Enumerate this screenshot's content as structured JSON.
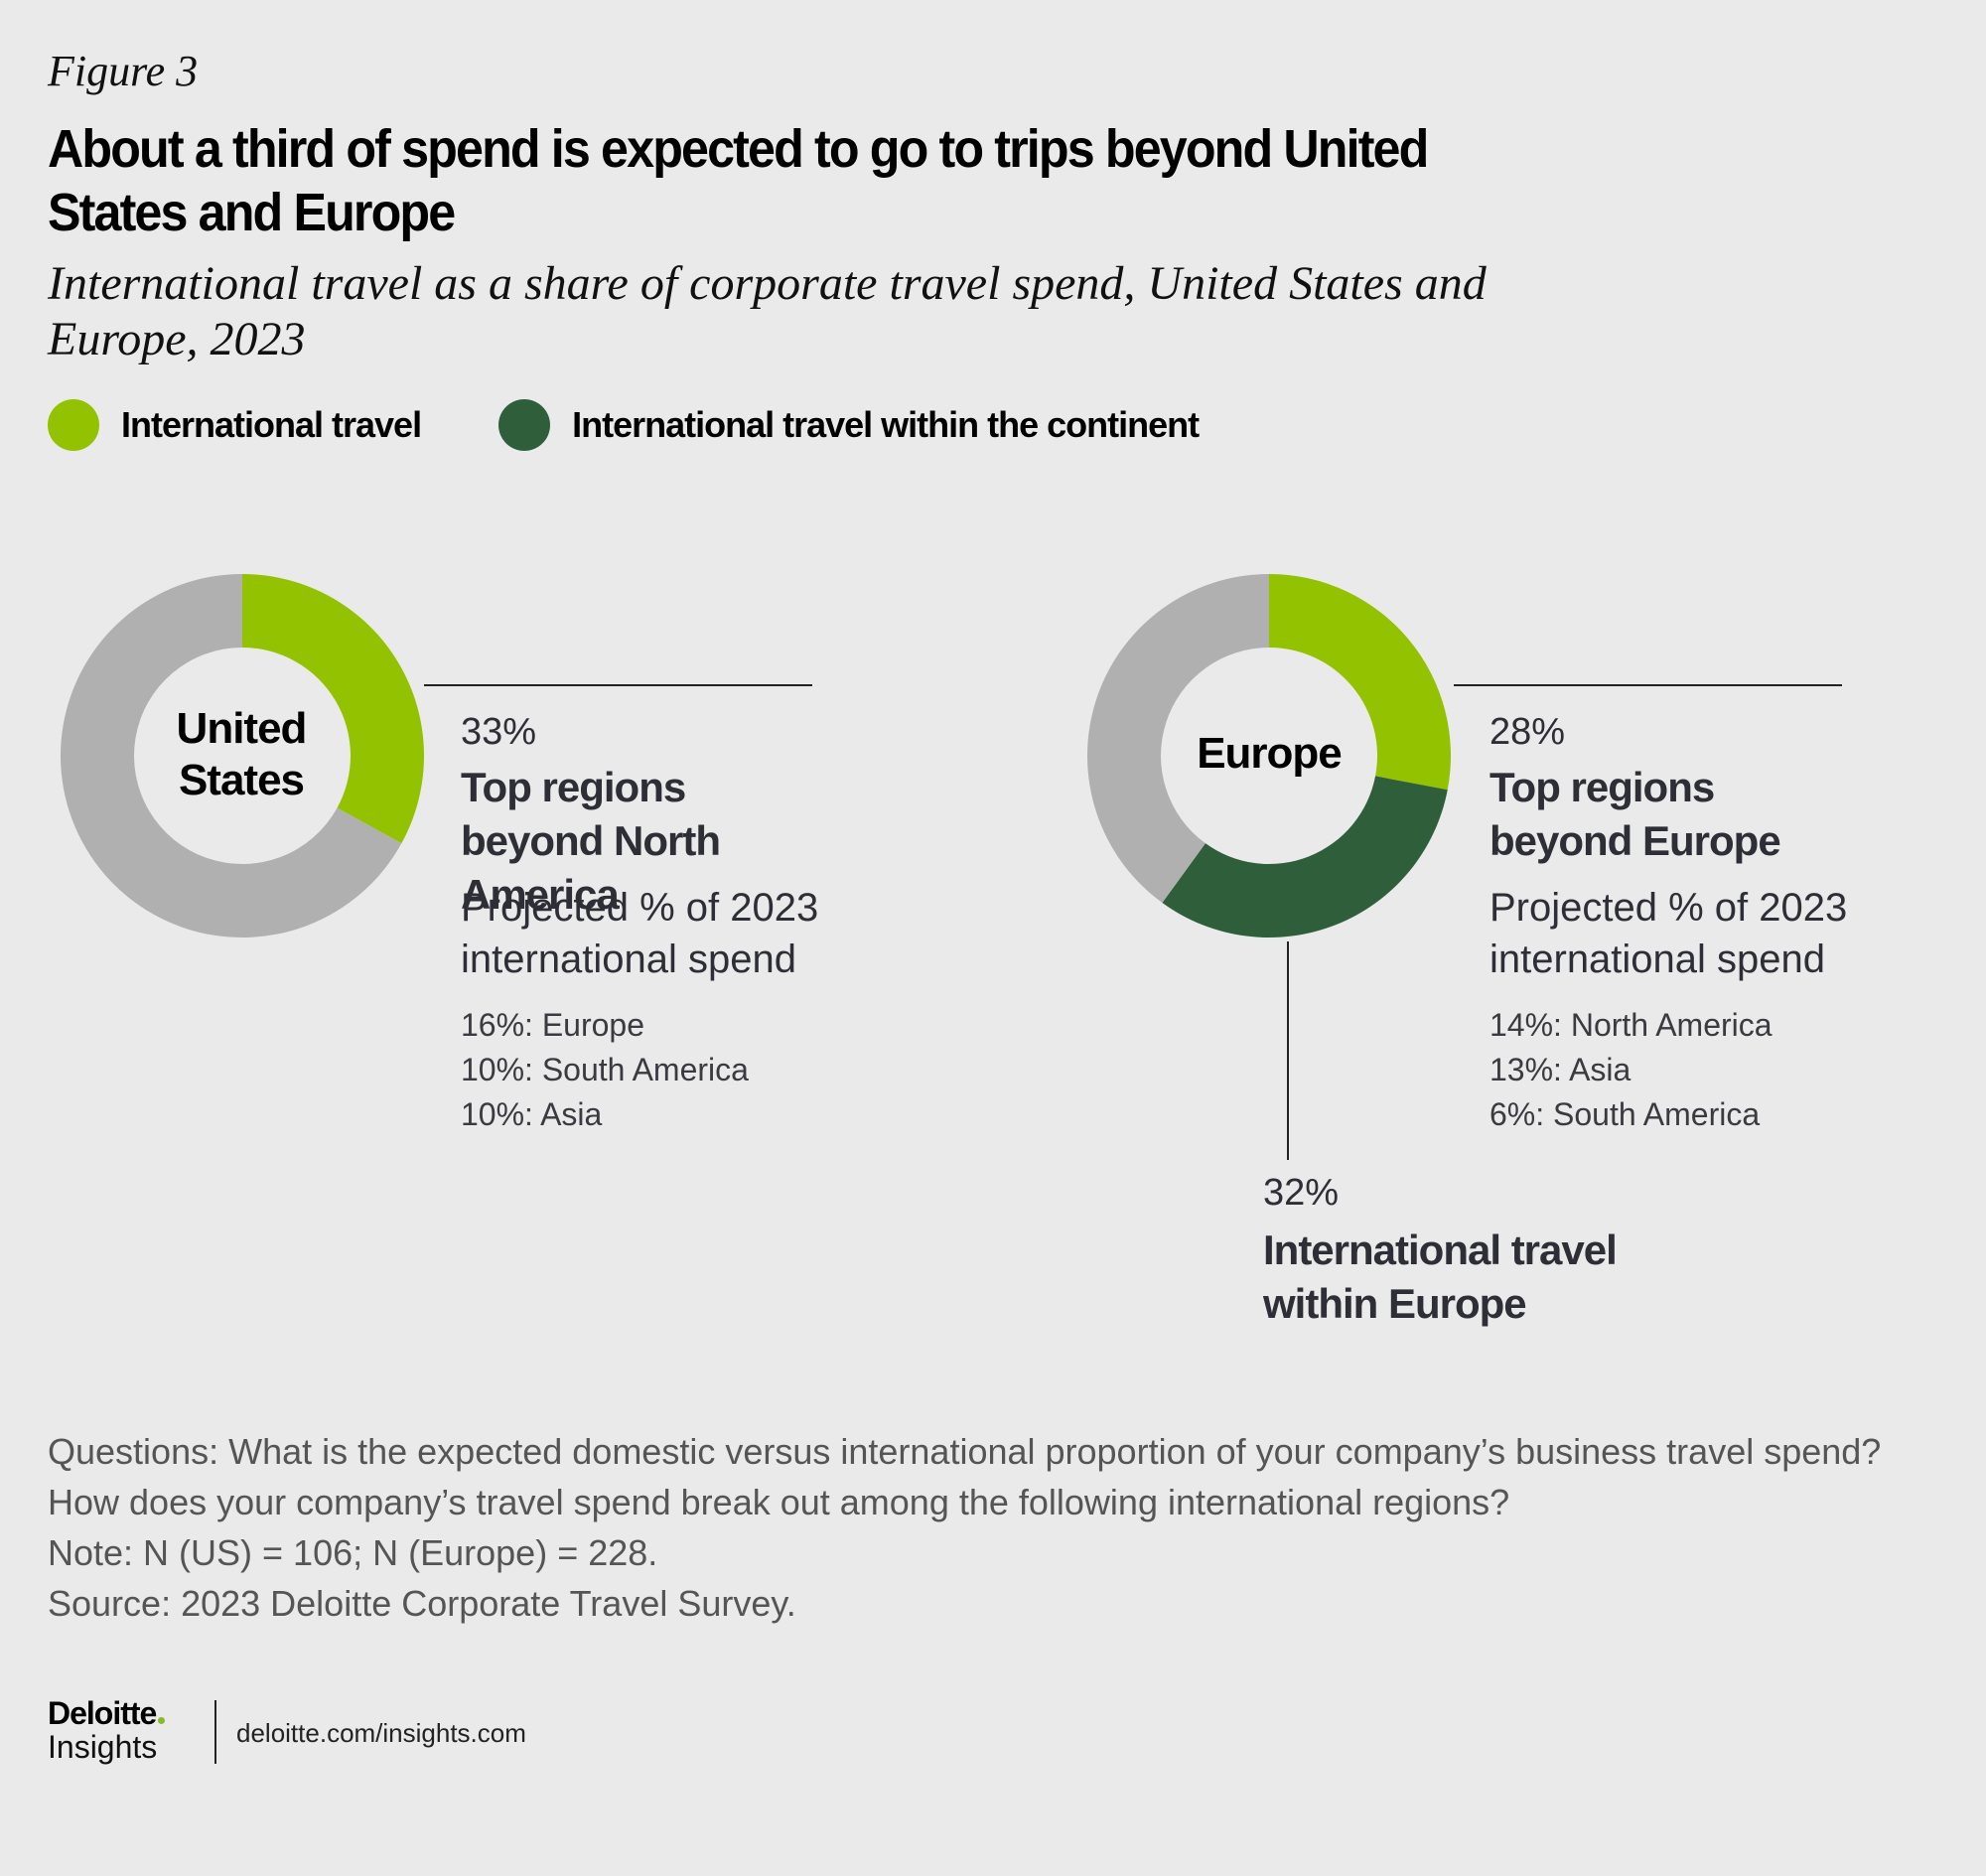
{
  "figure_label": "Figure 3",
  "title": "About a third of spend is expected to go to trips beyond United States and Europe",
  "subtitle": "International travel as a share of corporate travel spend, United States and Europe, 2023",
  "colors": {
    "international": "#92c200",
    "within_continent": "#2f5f3a",
    "remainder": "#b0b0b0",
    "logo_dot": "#86bc25"
  },
  "legend": [
    {
      "label": "International travel",
      "color_key": "international"
    },
    {
      "label": "International travel within the continent",
      "color_key": "within_continent"
    }
  ],
  "chart_data": [
    {
      "type": "pie",
      "title": "United States",
      "slices": [
        {
          "name": "International travel",
          "value": 33,
          "color_key": "international"
        },
        {
          "name": "Other",
          "value": 67,
          "color_key": "remainder"
        }
      ],
      "annotation": {
        "value_label": "33%",
        "category": "Top regions beyond North America",
        "subheading": "Projected % of 2023 international spend",
        "regions": [
          {
            "pct": 16,
            "label": "16%: Europe"
          },
          {
            "pct": 10,
            "label": "10%: South America"
          },
          {
            "pct": 10,
            "label": "10%: Asia"
          }
        ]
      }
    },
    {
      "type": "pie",
      "title": "Europe",
      "slices": [
        {
          "name": "International travel",
          "value": 28,
          "color_key": "international"
        },
        {
          "name": "International travel within the continent",
          "value": 32,
          "color_key": "within_continent"
        },
        {
          "name": "Other",
          "value": 40,
          "color_key": "remainder"
        }
      ],
      "annotation": {
        "value_label": "28%",
        "category": "Top regions beyond Europe",
        "subheading": "Projected % of 2023 international spend",
        "regions": [
          {
            "pct": 14,
            "label": "14%: North America"
          },
          {
            "pct": 13,
            "label": "13%: Asia"
          },
          {
            "pct": 6,
            "label": "6%: South America"
          }
        ]
      },
      "secondary_annotation": {
        "value_label": "32%",
        "category": "International travel within Europe"
      }
    }
  ],
  "notes": {
    "questions": "Questions: What is the expected domestic versus international proportion of your company’s business travel spend? How does your company’s travel spend break out among the following international regions?",
    "note": "Note: N (US) = 106; N (Europe) = 228.",
    "source": "Source: 2023 Deloitte Corporate Travel Survey."
  },
  "footer": {
    "logo_main": "Deloitte",
    "logo_sub": "Insights",
    "url": "deloitte.com/insights.com"
  }
}
